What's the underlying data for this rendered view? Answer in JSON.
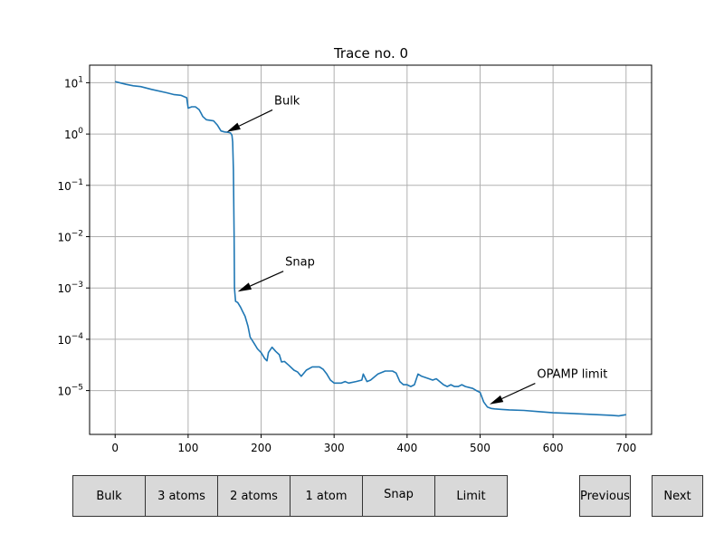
{
  "chart_data": {
    "type": "line",
    "title": "Trace no. 0",
    "xlabel": "",
    "ylabel": "",
    "xlim": [
      -35,
      735
    ],
    "ylim": [
      1.4e-06,
      22
    ],
    "yscale": "log",
    "grid": true,
    "line_color": "#1f77b4",
    "x_ticks": [
      0,
      100,
      200,
      300,
      400,
      500,
      600,
      700
    ],
    "x_tick_labels": [
      "0",
      "100",
      "200",
      "300",
      "400",
      "500",
      "600",
      "700"
    ],
    "y_ticks": [
      1e-05,
      0.0001,
      0.001,
      0.01,
      0.1,
      1,
      10
    ],
    "y_tick_bases": [
      "10",
      "10",
      "10",
      "10",
      "10",
      "10",
      "10"
    ],
    "y_tick_exponents": [
      "−5",
      "−4",
      "−3",
      "−2",
      "−1",
      "0",
      "1"
    ],
    "series": [
      {
        "x": [
          0,
          15,
          25,
          35,
          50,
          70,
          80,
          90,
          98,
          100,
          105,
          110,
          115,
          118,
          120,
          125,
          135,
          140,
          145,
          150,
          155,
          158,
          160,
          161,
          162,
          163,
          163.5,
          164,
          165,
          168,
          172,
          175,
          178,
          182,
          185,
          190,
          195,
          200,
          205,
          208,
          210,
          215,
          220,
          225,
          228,
          232,
          238,
          245,
          250,
          255,
          262,
          270,
          280,
          285,
          290,
          295,
          300,
          310,
          315,
          320,
          330,
          338,
          340,
          345,
          350,
          360,
          370,
          380,
          385,
          390,
          395,
          400,
          405,
          410,
          415,
          420,
          425,
          430,
          435,
          440,
          450,
          455,
          460,
          465,
          470,
          475,
          480,
          490,
          495,
          500,
          505,
          510,
          515,
          520,
          530,
          540,
          560,
          580,
          600,
          620,
          640,
          660,
          680,
          690,
          700
        ],
        "y": [
          10.5,
          9.3,
          8.7,
          8.4,
          7.4,
          6.4,
          5.9,
          5.7,
          5.1,
          3.2,
          3.4,
          3.4,
          3.0,
          2.5,
          2.2,
          1.9,
          1.8,
          1.5,
          1.15,
          1.1,
          1.08,
          1.05,
          0.95,
          0.7,
          0.2,
          0.01,
          0.001,
          0.0008,
          0.00055,
          0.00052,
          0.00042,
          0.00034,
          0.00028,
          0.00018,
          0.00011,
          8.5e-05,
          6.5e-05,
          5.5e-05,
          4.2e-05,
          3.8e-05,
          5.5e-05,
          7e-05,
          5.8e-05,
          5e-05,
          3.6e-05,
          3.7e-05,
          3.1e-05,
          2.5e-05,
          2.3e-05,
          1.9e-05,
          2.5e-05,
          2.9e-05,
          2.9e-05,
          2.6e-05,
          2.1e-05,
          1.6e-05,
          1.4e-05,
          1.4e-05,
          1.5e-05,
          1.4e-05,
          1.5e-05,
          1.6e-05,
          2.1e-05,
          1.5e-05,
          1.6e-05,
          2.1e-05,
          2.4e-05,
          2.4e-05,
          2.2e-05,
          1.5e-05,
          1.3e-05,
          1.3e-05,
          1.2e-05,
          1.3e-05,
          2.1e-05,
          1.9e-05,
          1.8e-05,
          1.7e-05,
          1.6e-05,
          1.7e-05,
          1.3e-05,
          1.2e-05,
          1.3e-05,
          1.2e-05,
          1.2e-05,
          1.3e-05,
          1.2e-05,
          1.1e-05,
          1e-05,
          9.2e-06,
          6e-06,
          4.8e-06,
          4.5e-06,
          4.4e-06,
          4.3e-06,
          4.2e-06,
          4.1e-06,
          3.9e-06,
          3.7e-06,
          3.6e-06,
          3.5e-06,
          3.4e-06,
          3.3e-06,
          3.2e-06,
          3.4e-06
        ]
      }
    ],
    "annotations": [
      {
        "text": "Bulk",
        "text_x": 218,
        "text_y": 3.2,
        "point_x": 153,
        "point_y": 1.1
      },
      {
        "text": "Snap",
        "text_x": 233,
        "text_y": 0.0023,
        "point_x": 168,
        "point_y": 0.00085
      },
      {
        "text": "OPAMP limit",
        "text_x": 578,
        "text_y": 1.5e-05,
        "point_x": 513,
        "point_y": 5.4e-06
      }
    ]
  },
  "buttons": {
    "bulk": "Bulk",
    "three_atoms": "3 atoms",
    "two_atoms": "2 atoms",
    "one_atom": "1 atom",
    "snap": "Snap",
    "limit": "Limit",
    "previous": "Previous",
    "next": "Next"
  }
}
